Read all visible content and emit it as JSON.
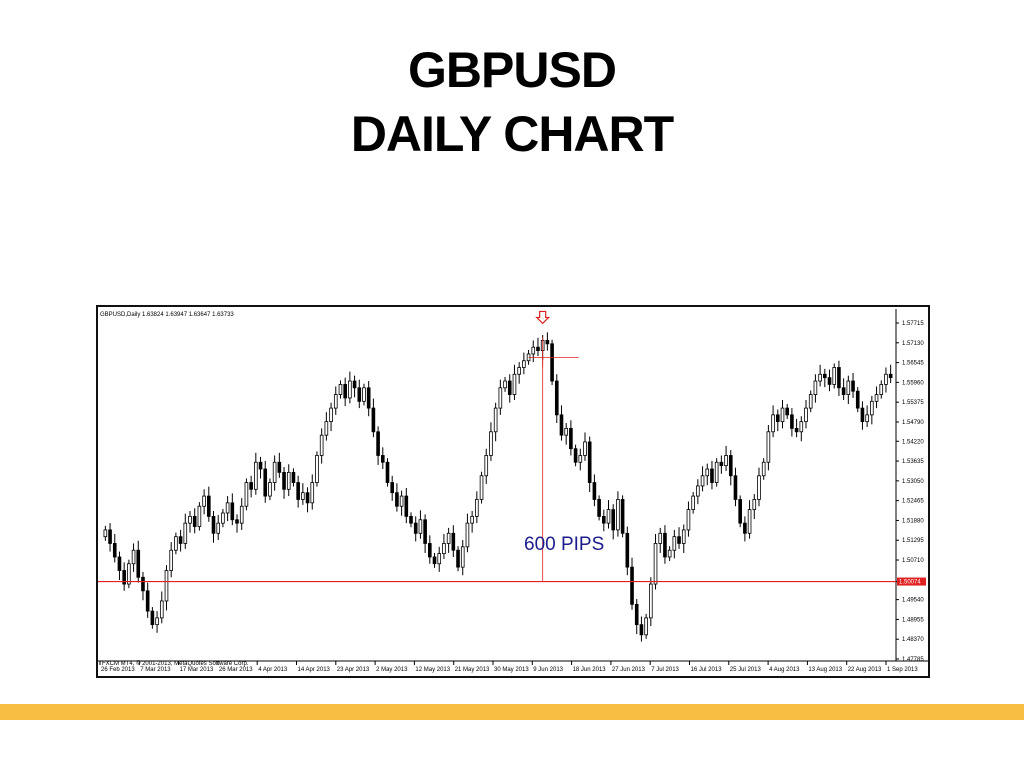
{
  "slide": {
    "title_line1": "GBPUSD",
    "title_line2": "DAILY CHART",
    "accent_color": "#F8BE44"
  },
  "chart_data": {
    "type": "candlestick",
    "header": "GBPUSD,Daily  1.63824 1.63947 1.63647 1.63733",
    "copyright": "FXCM MT4, © 2001-2013, MetaQuotes Software Corp.",
    "y_ticks": [
      "1.57715",
      "1.57130",
      "1.56545",
      "1.55960",
      "1.55375",
      "1.54790",
      "1.54220",
      "1.53635",
      "1.53050",
      "1.52465",
      "1.51880",
      "1.51295",
      "1.50710",
      "1.50074",
      "1.49540",
      "1.48955",
      "1.48370",
      "1.47785"
    ],
    "ylim": [
      1.47785,
      1.57715
    ],
    "x_ticks": [
      "26 Feb 2013",
      "7 Mar 2013",
      "17 Mar 2013",
      "26 Mar 2013",
      "4 Apr 2013",
      "14 Apr 2013",
      "23 Apr 2013",
      "2 May 2013",
      "12 May 2013",
      "21 May 2013",
      "30 May 2013",
      "9 Jun 2013",
      "18 Jun 2013",
      "27 Jun 2013",
      "7 Jul 2013",
      "16 Jul 2013",
      "25 Jul 2013",
      "4 Aug 2013",
      "13 Aug 2013",
      "22 Aug 2013",
      "1 Sep 2013"
    ],
    "horizontal_line": {
      "value": 1.50074,
      "label": "1.50074",
      "color": "#E02020"
    },
    "annotation": {
      "text": "600 PIPS",
      "color": "#1C1C8C"
    },
    "marker": {
      "type": "down-arrow",
      "color": "#E02020"
    },
    "closes": [
      1.516,
      1.512,
      1.508,
      1.504,
      1.5,
      1.506,
      1.51,
      1.502,
      1.498,
      1.492,
      1.488,
      1.49,
      1.495,
      1.504,
      1.51,
      1.514,
      1.512,
      1.518,
      1.52,
      1.517,
      1.523,
      1.526,
      1.52,
      1.515,
      1.518,
      1.521,
      1.524,
      1.519,
      1.518,
      1.523,
      1.53,
      1.528,
      1.536,
      1.534,
      1.526,
      1.53,
      1.536,
      1.533,
      1.528,
      1.533,
      1.53,
      1.525,
      1.527,
      1.524,
      1.53,
      1.538,
      1.544,
      1.548,
      1.552,
      1.556,
      1.559,
      1.555,
      1.56,
      1.558,
      1.554,
      1.558,
      1.552,
      1.545,
      1.538,
      1.536,
      1.53,
      1.527,
      1.523,
      1.526,
      1.52,
      1.518,
      1.515,
      1.519,
      1.512,
      1.508,
      1.506,
      1.509,
      1.512,
      1.515,
      1.51,
      1.505,
      1.511,
      1.518,
      1.52,
      1.525,
      1.532,
      1.538,
      1.545,
      1.552,
      1.558,
      1.56,
      1.556,
      1.562,
      1.564,
      1.566,
      1.568,
      1.57,
      1.569,
      1.572,
      1.571,
      1.56,
      1.55,
      1.544,
      1.546,
      1.54,
      1.536,
      1.538,
      1.542,
      1.53,
      1.525,
      1.52,
      1.518,
      1.522,
      1.516,
      1.525,
      1.515,
      1.505,
      1.494,
      1.488,
      1.485,
      1.49,
      1.5,
      1.512,
      1.515,
      1.508,
      1.51,
      1.514,
      1.512,
      1.516,
      1.522,
      1.526,
      1.529,
      1.532,
      1.534,
      1.53,
      1.536,
      1.535,
      1.538,
      1.532,
      1.525,
      1.518,
      1.515,
      1.522,
      1.525,
      1.532,
      1.536,
      1.545,
      1.55,
      1.548,
      1.552,
      1.55,
      1.546,
      1.545,
      1.548,
      1.552,
      1.556,
      1.56,
      1.562,
      1.561,
      1.559,
      1.564,
      1.558,
      1.556,
      1.56,
      1.557,
      1.552,
      1.548,
      1.55,
      1.554,
      1.556,
      1.559,
      1.562,
      1.561
    ]
  }
}
